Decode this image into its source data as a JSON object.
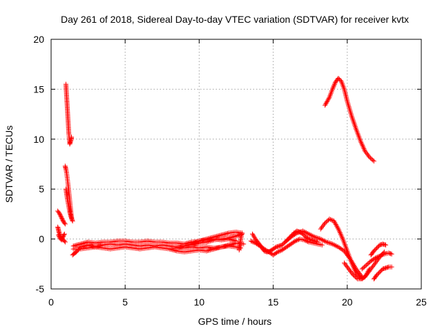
{
  "chart_data": {
    "type": "scatter",
    "title": "Day 261 of 2018, Sidereal Day-to-day VTEC variation (SDTVAR) for receiver kvtx",
    "xlabel": "GPS time / hours",
    "ylabel": "SDTVAR / TECUs",
    "xlim": [
      0,
      25
    ],
    "ylim": [
      -5,
      20
    ],
    "xticks": [
      0,
      5,
      10,
      15,
      20,
      25
    ],
    "yticks": [
      -5,
      0,
      5,
      10,
      15,
      20
    ],
    "grid": true,
    "marker": "+",
    "series": [
      {
        "name": "SDTVAR",
        "color": "#ff0000",
        "tracks": [
          {
            "x": [
              0.45,
              0.55,
              0.65,
              0.75,
              0.85,
              0.95
            ],
            "y": [
              2.8,
              2.6,
              2.3,
              2.0,
              1.7,
              1.5
            ]
          },
          {
            "x": [
              0.45,
              0.5,
              0.55,
              0.6,
              0.65,
              0.7,
              0.75,
              0.8,
              0.85,
              0.9,
              0.95
            ],
            "y": [
              1.2,
              0.9,
              0.6,
              0.4,
              0.2,
              0.1,
              0.0,
              -0.1,
              -0.1,
              -0.2,
              -0.3
            ]
          },
          {
            "x": [
              0.5,
              0.6,
              0.7,
              0.8,
              0.9
            ],
            "y": [
              0.4,
              0.1,
              -0.1,
              0.2,
              0.5
            ]
          },
          {
            "x": [
              1.0,
              1.02,
              1.04,
              1.06,
              1.08,
              1.1,
              1.12,
              1.14,
              1.16,
              1.18,
              1.2,
              1.22,
              1.24,
              1.26,
              1.28,
              1.3,
              1.32,
              1.34,
              1.36,
              1.38
            ],
            "y": [
              15.5,
              15.0,
              14.5,
              14.0,
              13.5,
              13.0,
              12.5,
              12.0,
              11.5,
              11.0,
              10.5,
              10.2,
              9.8,
              9.5,
              9.6,
              9.7,
              9.8,
              9.9,
              10.0,
              10.2
            ]
          },
          {
            "x": [
              0.95,
              1.0,
              1.05,
              1.1,
              1.15,
              1.2,
              1.25,
              1.3,
              1.35,
              1.4
            ],
            "y": [
              7.3,
              7.0,
              6.6,
              6.0,
              5.4,
              4.7,
              4.0,
              3.3,
              2.6,
              2.0
            ]
          },
          {
            "x": [
              1.0,
              1.05,
              1.1,
              1.15,
              1.2,
              1.25,
              1.3,
              1.35,
              1.4,
              1.45
            ],
            "y": [
              5.0,
              4.5,
              4.0,
              3.6,
              3.2,
              2.8,
              2.5,
              2.2,
              2.0,
              1.8
            ]
          },
          {
            "x": [
              1.45,
              1.7,
              2.0,
              2.5,
              3.0,
              3.5,
              4.0,
              4.5,
              5.0,
              5.5,
              6.0,
              6.5,
              7.0,
              7.5,
              8.0,
              8.5,
              9.0,
              9.5,
              10.0,
              10.5,
              11.0,
              11.5,
              12.0,
              12.5,
              12.8
            ],
            "y": [
              -1.6,
              -1.3,
              -0.8,
              -0.6,
              -0.8,
              -0.6,
              -0.5,
              -0.6,
              -0.5,
              -0.6,
              -0.7,
              -0.6,
              -0.7,
              -0.6,
              -0.7,
              -0.8,
              -0.9,
              -0.8,
              -0.9,
              -0.8,
              -0.9,
              -0.8,
              -0.7,
              -0.8,
              -0.9
            ]
          },
          {
            "x": [
              1.5,
              2.0,
              2.5,
              3.0,
              3.5,
              4.0,
              4.5,
              5.0,
              5.5,
              6.0,
              6.5,
              7.0,
              7.5,
              8.0,
              8.5,
              9.0,
              9.5,
              10.0,
              10.5,
              11.0,
              11.5,
              12.0,
              12.5
            ],
            "y": [
              -0.7,
              -0.5,
              -0.3,
              -0.4,
              -0.3,
              -0.3,
              -0.2,
              -0.2,
              -0.3,
              -0.3,
              -0.2,
              -0.3,
              -0.3,
              -0.4,
              -0.4,
              -0.5,
              -0.3,
              -0.2,
              -0.1,
              0.0,
              -0.1,
              0.0,
              -0.2
            ]
          },
          {
            "x": [
              1.5,
              2.0,
              2.5,
              3.0,
              3.5,
              4.0,
              4.5,
              5.0,
              5.5,
              6.0,
              6.5,
              7.0,
              7.5,
              8.0,
              8.5,
              9.0,
              9.5,
              10.0,
              10.5,
              11.0,
              11.5,
              12.0,
              12.5,
              13.0
            ],
            "y": [
              -1.0,
              -1.0,
              -0.9,
              -0.8,
              -0.9,
              -1.0,
              -0.9,
              -0.8,
              -0.9,
              -1.0,
              -0.9,
              -0.8,
              -0.9,
              -1.0,
              -1.2,
              -1.3,
              -1.2,
              -1.1,
              -1.2,
              -1.0,
              -0.8,
              -0.6,
              -0.4,
              -0.5
            ]
          },
          {
            "x": [
              8.5,
              9.0,
              9.5,
              10.0,
              10.5,
              11.0,
              11.5,
              12.0,
              12.5,
              12.9
            ],
            "y": [
              -0.9,
              -0.7,
              -0.5,
              -0.2,
              0.0,
              0.2,
              0.4,
              0.6,
              0.7,
              0.6
            ]
          },
          {
            "x": [
              9.5,
              10.0,
              10.5,
              11.0,
              11.5,
              12.0,
              12.5,
              12.9
            ],
            "y": [
              -0.6,
              -0.4,
              -0.3,
              -0.1,
              0.0,
              0.1,
              0.3,
              0.5
            ]
          },
          {
            "x": [
              12.7,
              12.75,
              12.8,
              12.85
            ],
            "y": [
              -1.1,
              -0.6,
              -0.1,
              0.4
            ]
          },
          {
            "x": [
              13.6,
              13.8,
              14.0,
              14.2,
              14.4,
              14.6,
              14.8,
              15.0,
              15.2,
              15.4,
              15.6,
              15.8,
              16.0,
              16.2,
              16.4,
              16.6,
              16.8,
              17.0,
              17.2,
              17.4,
              17.6,
              17.8,
              18.0
            ],
            "y": [
              0.5,
              0.0,
              -0.4,
              -0.8,
              -1.2,
              -1.3,
              -1.2,
              -1.0,
              -0.8,
              -0.7,
              -0.6,
              -0.3,
              0.0,
              0.3,
              0.6,
              0.8,
              0.7,
              0.5,
              0.2,
              0.0,
              -0.1,
              -0.2,
              -0.3
            ]
          },
          {
            "x": [
              13.5,
              13.8,
              14.1,
              14.4,
              14.7,
              15.0,
              15.3,
              15.6,
              15.9,
              16.2,
              16.5,
              16.8,
              17.1,
              17.4,
              17.7,
              18.0,
              18.3
            ],
            "y": [
              -0.2,
              -0.4,
              -0.7,
              -1.0,
              -1.3,
              -1.6,
              -1.3,
              -1.1,
              -0.8,
              -0.5,
              -0.2,
              0.0,
              -0.1,
              -0.3,
              -0.4,
              -0.5,
              -0.6
            ]
          },
          {
            "x": [
              15.8,
              16.2,
              16.6,
              17.0,
              17.4,
              17.8,
              18.2,
              18.6,
              19.0,
              19.4,
              19.8,
              20.2,
              20.6,
              21.0
            ],
            "y": [
              -0.3,
              0.2,
              0.6,
              0.8,
              0.5,
              0.2,
              0.0,
              -0.3,
              -0.5,
              -0.8,
              -1.2,
              -2.0,
              -3.0,
              -3.8
            ]
          },
          {
            "x": [
              18.2,
              18.5,
              18.8,
              19.1,
              19.4,
              19.7,
              20.0,
              20.3,
              20.6,
              20.9,
              21.2,
              21.5
            ],
            "y": [
              1.0,
              1.6,
              2.0,
              1.8,
              1.0,
              0.0,
              -1.2,
              -2.4,
              -3.4,
              -4.0,
              -3.8,
              -3.0
            ]
          },
          {
            "x": [
              18.5,
              18.8,
              19.0,
              19.2,
              19.4,
              19.6,
              19.8,
              20.0,
              20.3,
              20.6,
              20.9,
              21.2,
              21.5,
              21.8
            ],
            "y": [
              13.4,
              14.2,
              15.0,
              15.7,
              16.1,
              15.8,
              15.0,
              13.8,
              12.3,
              11.0,
              9.8,
              8.8,
              8.2,
              7.8
            ]
          },
          {
            "x": [
              19.8,
              20.1,
              20.4,
              20.7,
              21.0,
              21.3,
              21.6,
              21.9,
              22.2,
              22.5
            ],
            "y": [
              -2.4,
              -3.0,
              -3.6,
              -4.0,
              -4.0,
              -3.6,
              -3.0,
              -2.4,
              -1.8,
              -1.3
            ]
          },
          {
            "x": [
              21.0,
              21.3,
              21.6,
              21.9,
              22.2,
              22.5,
              22.8,
              23.0
            ],
            "y": [
              -3.0,
              -2.6,
              -2.2,
              -1.9,
              -1.7,
              -1.5,
              -1.4,
              -1.5
            ]
          },
          {
            "x": [
              21.8,
              22.0,
              22.2,
              22.4,
              22.6,
              22.8,
              23.0
            ],
            "y": [
              -4.0,
              -3.6,
              -3.3,
              -3.0,
              -2.9,
              -2.8,
              -2.8
            ]
          },
          {
            "x": [
              21.6,
              21.8,
              22.0,
              22.2,
              22.4,
              22.6
            ],
            "y": [
              -1.6,
              -1.2,
              -0.9,
              -0.6,
              -0.5,
              -0.6
            ]
          }
        ]
      }
    ]
  }
}
